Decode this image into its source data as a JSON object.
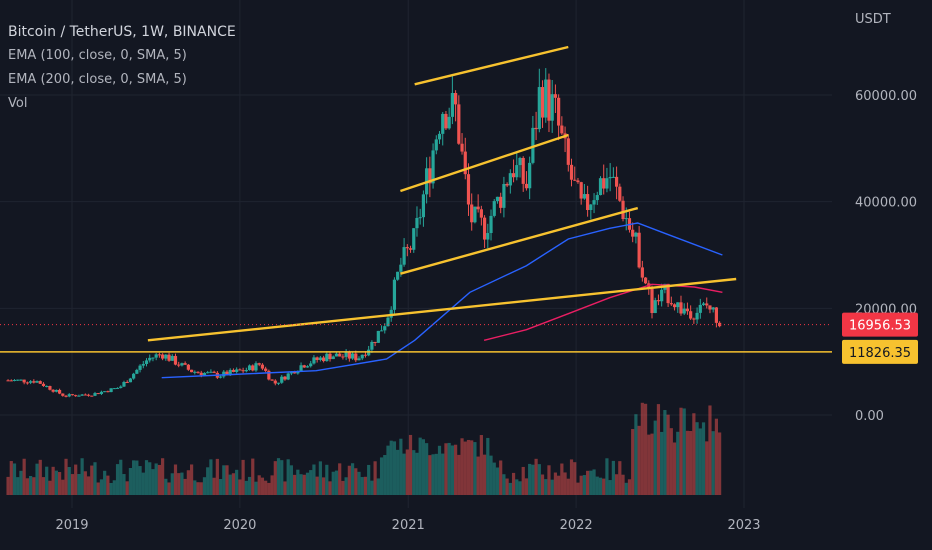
{
  "chart_data": {
    "type": "candlestick",
    "title": "Bitcoin / TetherUS, 1W, BINANCE",
    "indicators": [
      "EMA (100, close, 0, SMA, 5)",
      "EMA (200, close, 0, SMA, 5)",
      "Vol"
    ],
    "y_unit": "USDT",
    "y_ticks": [
      "60000.00",
      "40000.00",
      "20000.00",
      "0.00"
    ],
    "x_ticks": [
      "2019",
      "2020",
      "2021",
      "2022",
      "2023"
    ],
    "price_range": [
      0,
      70000
    ],
    "last_price": {
      "label": "16956.53",
      "value": 16956.53,
      "color": "#f23645"
    },
    "horizontal_level": {
      "label": "11826.35",
      "value": 11826.35,
      "color": "#f7c22f"
    },
    "close_series": [
      {
        "date": "2018-08",
        "close": 6500
      },
      {
        "date": "2018-10",
        "close": 6400
      },
      {
        "date": "2018-12",
        "close": 3600
      },
      {
        "date": "2019-02",
        "close": 3900
      },
      {
        "date": "2019-04",
        "close": 5200
      },
      {
        "date": "2019-06",
        "close": 10500
      },
      {
        "date": "2019-07",
        "close": 11500
      },
      {
        "date": "2019-09",
        "close": 8300
      },
      {
        "date": "2019-11",
        "close": 7400
      },
      {
        "date": "2020-01",
        "close": 8500
      },
      {
        "date": "2020-02",
        "close": 9600
      },
      {
        "date": "2020-03",
        "close": 5800
      },
      {
        "date": "2020-05",
        "close": 9400
      },
      {
        "date": "2020-07",
        "close": 11200
      },
      {
        "date": "2020-09",
        "close": 10800
      },
      {
        "date": "2020-10",
        "close": 13500
      },
      {
        "date": "2020-11",
        "close": 18000
      },
      {
        "date": "2020-12",
        "close": 28000
      },
      {
        "date": "2021-01",
        "close": 33000
      },
      {
        "date": "2021-02",
        "close": 46000
      },
      {
        "date": "2021-03",
        "close": 58000
      },
      {
        "date": "2021-04",
        "close": 57000
      },
      {
        "date": "2021-05",
        "close": 37000
      },
      {
        "date": "2021-06",
        "close": 35000
      },
      {
        "date": "2021-07",
        "close": 40000
      },
      {
        "date": "2021-08",
        "close": 47000
      },
      {
        "date": "2021-09",
        "close": 43000
      },
      {
        "date": "2021-10",
        "close": 61000
      },
      {
        "date": "2021-11",
        "close": 57000
      },
      {
        "date": "2021-12",
        "close": 46000
      },
      {
        "date": "2022-01",
        "close": 38000
      },
      {
        "date": "2022-02",
        "close": 43000
      },
      {
        "date": "2022-03",
        "close": 45000
      },
      {
        "date": "2022-04",
        "close": 38000
      },
      {
        "date": "2022-05",
        "close": 31000
      },
      {
        "date": "2022-06",
        "close": 20000
      },
      {
        "date": "2022-07",
        "close": 23000
      },
      {
        "date": "2022-08",
        "close": 20000
      },
      {
        "date": "2022-09",
        "close": 19400
      },
      {
        "date": "2022-10",
        "close": 20500
      },
      {
        "date": "2022-11",
        "close": 16956.53
      }
    ],
    "ema100": [
      {
        "date": "2019-07",
        "value": 7000
      },
      {
        "date": "2019-12",
        "value": 7600
      },
      {
        "date": "2020-06",
        "value": 8300
      },
      {
        "date": "2020-11",
        "value": 10500
      },
      {
        "date": "2021-01",
        "value": 14000
      },
      {
        "date": "2021-05",
        "value": 23000
      },
      {
        "date": "2021-09",
        "value": 28000
      },
      {
        "date": "2021-12",
        "value": 33000
      },
      {
        "date": "2022-03",
        "value": 35000
      },
      {
        "date": "2022-05",
        "value": 36000
      },
      {
        "date": "2022-07",
        "value": 34000
      },
      {
        "date": "2022-11",
        "value": 30000
      }
    ],
    "ema200": [
      {
        "date": "2021-06",
        "value": 14000
      },
      {
        "date": "2021-09",
        "value": 16000
      },
      {
        "date": "2021-12",
        "value": 19000
      },
      {
        "date": "2022-03",
        "value": 22000
      },
      {
        "date": "2022-06",
        "value": 24500
      },
      {
        "date": "2022-09",
        "value": 24000
      },
      {
        "date": "2022-11",
        "value": 23000
      }
    ],
    "trendlines": [
      {
        "from": {
          "date": "2019-06",
          "value": 14000
        },
        "to": {
          "date": "2022-12",
          "value": 25500
        }
      },
      {
        "from": {
          "date": "2020-12",
          "value": 26500
        },
        "to": {
          "date": "2022-05",
          "value": 38800
        }
      },
      {
        "from": {
          "date": "2020-12",
          "value": 42000
        },
        "to": {
          "date": "2021-12",
          "value": 52500
        }
      },
      {
        "from": {
          "date": "2021-01",
          "value": 62000
        },
        "to": {
          "date": "2021-12",
          "value": 69000
        }
      }
    ]
  },
  "colors": {
    "background": "#131722",
    "up": "#26a69a",
    "down": "#ef5350",
    "ema100": "#2962ff",
    "ema200": "#e91e63",
    "trendline": "#f7c22f",
    "grid": "#1f2430"
  }
}
